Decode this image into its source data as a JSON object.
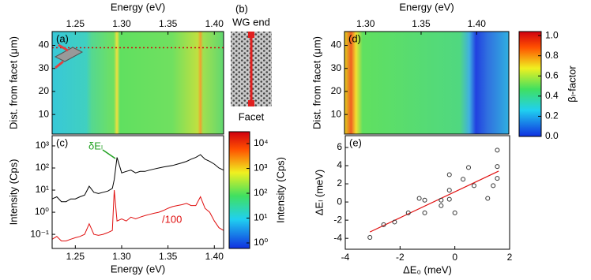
{
  "chart_data": [
    {
      "type": "heatmap",
      "panel_label": "(a)",
      "xlabel": "Energy (eV)",
      "ylabel": "Dist. from facet (μm)",
      "xlim": [
        1.225,
        1.41
      ],
      "xticks": [
        1.25,
        {
          "value": 1.3,
          "label": "1.30"
        },
        1.35,
        {
          "value": 1.4,
          "label": "1.40"
        }
      ],
      "ylim": [
        1.5,
        46
      ],
      "yticks": [
        10,
        20,
        30,
        40
      ],
      "guide_y": 39,
      "guide_color": "#d01010",
      "colorbar": {
        "label": "Intensity (Cps)",
        "log": true,
        "lim": [
          0.6,
          30000
        ],
        "ticks": [
          {
            "value": 1,
            "label": "10⁰"
          },
          {
            "value": 10,
            "label": "10¹"
          },
          {
            "value": 100,
            "label": "10²"
          },
          {
            "value": 1000,
            "label": "10³"
          },
          {
            "value": 10000,
            "label": "10⁴"
          }
        ]
      }
    },
    {
      "type": "schematic",
      "panel_label": "(b)",
      "top_label": "WG end",
      "bottom_label": "Facet"
    },
    {
      "type": "line",
      "panel_label": "(c)",
      "xlabel": "Energy (eV)",
      "ylabel": "Intensity (Cps)",
      "log_y": true,
      "xlim": [
        1.225,
        1.41
      ],
      "xticks": [
        1.25,
        {
          "value": 1.3,
          "label": "1.30"
        },
        1.35,
        {
          "value": 1.4,
          "label": "1.40"
        }
      ],
      "ylim": [
        0.023,
        2900
      ],
      "yticks": [
        {
          "value": 0.1,
          "label": "10⁻¹"
        },
        {
          "value": 1,
          "label": "10⁰"
        },
        {
          "value": 10,
          "label": "10¹"
        },
        {
          "value": 100,
          "label": "10²"
        },
        {
          "value": 1000,
          "label": "10³"
        }
      ],
      "x": [
        1.225,
        1.23,
        1.235,
        1.24,
        1.245,
        1.25,
        1.255,
        1.26,
        1.265,
        1.27,
        1.275,
        1.28,
        1.285,
        1.29,
        1.292,
        1.295,
        1.3,
        1.305,
        1.31,
        1.315,
        1.32,
        1.325,
        1.33,
        1.335,
        1.34,
        1.345,
        1.35,
        1.355,
        1.36,
        1.365,
        1.37,
        1.375,
        1.38,
        1.385,
        1.39,
        1.395,
        1.4,
        1.405,
        1.41
      ],
      "series": [
        {
          "color": "#000000",
          "values": [
            4,
            5,
            3,
            3,
            4,
            4,
            5,
            6,
            15,
            8,
            7,
            8,
            9,
            12,
            30,
            300,
            60,
            70,
            80,
            60,
            70,
            70,
            80,
            90,
            100,
            110,
            120,
            130,
            150,
            170,
            200,
            250,
            300,
            400,
            250,
            200,
            150,
            100,
            80
          ]
        },
        {
          "color": "#e01010",
          "values": [
            0.06,
            0.08,
            0.05,
            0.05,
            0.06,
            0.07,
            0.08,
            0.1,
            0.3,
            0.1,
            0.09,
            0.1,
            0.12,
            0.15,
            10,
            0.4,
            0.5,
            0.4,
            0.6,
            0.5,
            0.6,
            0.7,
            0.8,
            0.9,
            1,
            1.2,
            1.5,
            1.8,
            2,
            2.2,
            2.5,
            2,
            2,
            5,
            1.5,
            1,
            0.4,
            0.2,
            0.15
          ]
        }
      ],
      "annotations": [
        {
          "text": "δEₗ",
          "color": "#20a020"
        },
        {
          "text": "/100",
          "color": "#e01010"
        }
      ]
    },
    {
      "type": "heatmap",
      "panel_label": "(d)",
      "xlabel": "Energy (eV)",
      "ylabel": "Dist. from facet (μm)",
      "xlim": [
        1.281,
        1.429
      ],
      "xticks": [
        {
          "value": 1.3,
          "label": "1.30"
        },
        1.35,
        {
          "value": 1.4,
          "label": "1.40"
        }
      ],
      "ylim": [
        1.5,
        46
      ],
      "yticks": [
        10,
        20,
        30,
        40
      ],
      "colorbar": {
        "label": "βₗ-factor",
        "log": false,
        "lim": [
          0,
          1.04
        ],
        "ticks": [
          {
            "value": 0,
            "label": "0.0"
          },
          {
            "value": 0.2,
            "label": "0.2"
          },
          {
            "value": 0.4,
            "label": "0.4"
          },
          {
            "value": 0.6,
            "label": "0.6"
          },
          {
            "value": 0.8,
            "label": "0.8"
          },
          {
            "value": 1,
            "label": "1.0"
          }
        ]
      }
    },
    {
      "type": "scatter",
      "panel_label": "(e)",
      "xlabel": "ΔE₀ (meV)",
      "ylabel": "ΔEₗ (meV)",
      "xlim": [
        -4,
        2
      ],
      "xticks": [
        -4,
        -2,
        0,
        2
      ],
      "ylim": [
        -5.2,
        7.3
      ],
      "yticks": [
        -4,
        -2,
        0,
        2,
        4,
        6
      ],
      "x": [
        -3.1,
        -2.6,
        -2.2,
        -1.7,
        -1.3,
        -1.1,
        -1.1,
        -0.5,
        -0.5,
        -0.2,
        -0.2,
        -0.2,
        0.0,
        0.3,
        0.5,
        0.7,
        1.2,
        1.4,
        1.55,
        1.55,
        1.55
      ],
      "y": [
        -3.9,
        -2.5,
        -2.2,
        -1.2,
        0.4,
        0.2,
        -1.2,
        -0.4,
        0.2,
        3.0,
        1.3,
        0.3,
        -1.2,
        2.5,
        3.8,
        1.8,
        0.4,
        1.8,
        2.6,
        3.9,
        5.7
      ],
      "color": "#333333",
      "fit": {
        "x": [
          -3.1,
          1.6
        ],
        "y": [
          -3.3,
          3.4
        ],
        "color": "#e01010"
      }
    }
  ]
}
